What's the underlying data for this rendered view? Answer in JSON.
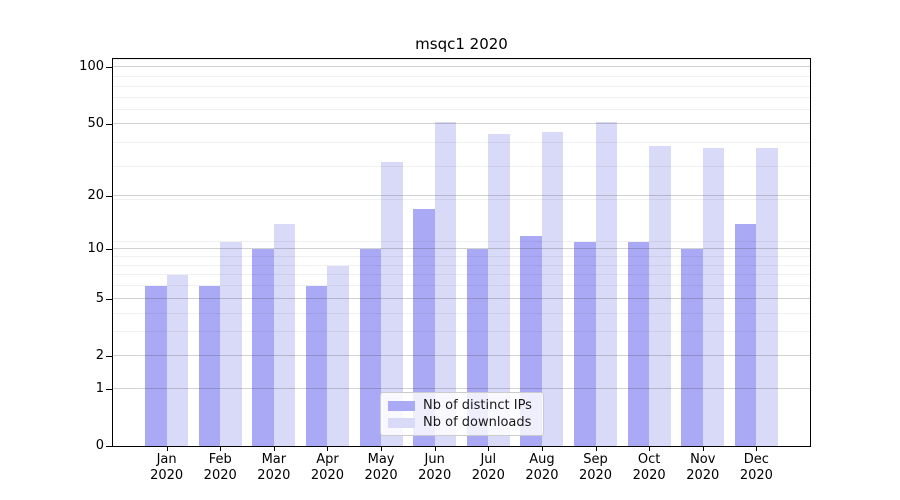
{
  "chart_data": {
    "type": "bar",
    "title": "msqc1 2020",
    "categories": [
      "Jan",
      "Feb",
      "Mar",
      "Apr",
      "May",
      "Jun",
      "Jul",
      "Aug",
      "Sep",
      "Oct",
      "Nov",
      "Dec"
    ],
    "x_tick_second_line": "2020",
    "series": [
      {
        "name": "Nb of distinct IPs",
        "color": "#a9a9f5",
        "values": [
          6,
          6,
          10,
          6,
          10,
          17,
          10,
          12,
          11,
          11,
          10,
          14
        ]
      },
      {
        "name": "Nb of downloads",
        "color": "#d9d9f8",
        "values": [
          7,
          11,
          14,
          8,
          31,
          51,
          44,
          45,
          51,
          38,
          37,
          37
        ]
      }
    ],
    "y_axis": {
      "scale": "log1p",
      "ticks": [
        0,
        1,
        2,
        5,
        10,
        20,
        50,
        100
      ],
      "max": 111
    },
    "grid": "horizontal",
    "legend_position": "lower-center"
  }
}
